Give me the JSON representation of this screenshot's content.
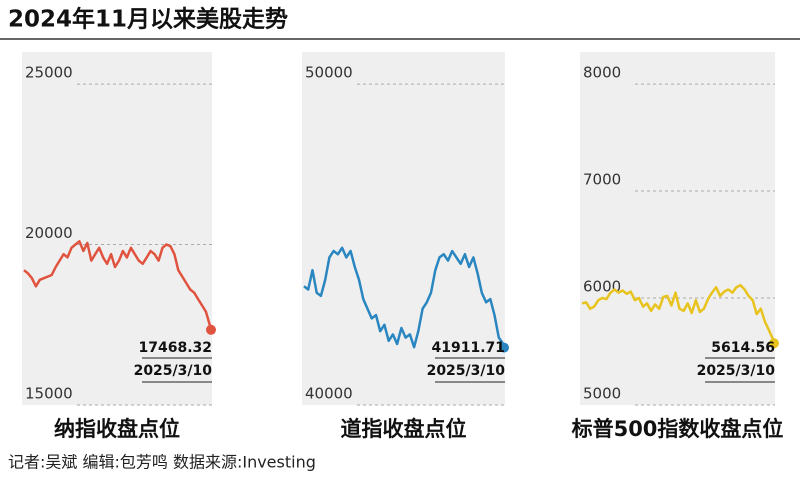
{
  "title": "2024年11月以来美股走势",
  "footer": "记者:吴斌  编辑:包芳鸣  数据来源:Investing",
  "chart_data": [
    {
      "type": "line",
      "title": "纳指收盘点位",
      "color": "#e0533f",
      "ylim": [
        15000,
        26000
      ],
      "yticks": [
        15000,
        20000,
        25000
      ],
      "values": [
        19200,
        19100,
        18950,
        18700,
        18900,
        18950,
        19000,
        19050,
        19300,
        19500,
        19700,
        19600,
        19900,
        20000,
        20100,
        19800,
        20050,
        19500,
        19700,
        19900,
        19600,
        19400,
        19700,
        19300,
        19500,
        19800,
        19600,
        19900,
        19700,
        19500,
        19400,
        19600,
        19800,
        19700,
        19500,
        19900,
        20000,
        19950,
        19700,
        19200,
        19000,
        18800,
        18600,
        18500,
        18300,
        18100,
        17900,
        17468.32
      ],
      "end_value_label": "17468.32",
      "end_date": "2025/3/10"
    },
    {
      "type": "line",
      "title": "道指收盘点位",
      "color": "#2a86c0",
      "ylim": [
        40000,
        51000
      ],
      "yticks": [
        40000,
        50000
      ],
      "values": [
        43700,
        43600,
        44200,
        43500,
        43400,
        43900,
        44600,
        44800,
        44700,
        44900,
        44600,
        44800,
        44300,
        43900,
        43300,
        43000,
        42700,
        42800,
        42300,
        42500,
        42000,
        42200,
        41900,
        42400,
        42100,
        42200,
        41800,
        42300,
        43000,
        43200,
        43500,
        44200,
        44600,
        44700,
        44500,
        44800,
        44600,
        44400,
        44700,
        44300,
        44600,
        44100,
        43500,
        43200,
        43300,
        42800,
        42100,
        41911.71
      ],
      "end_value_label": "41911.71",
      "end_date": "2025/3/10"
    },
    {
      "type": "line",
      "title": "标普500指数收盘点位",
      "color": "#e8c31d",
      "ylim": [
        5000,
        8300
      ],
      "yticks": [
        5000,
        6000,
        7000,
        8000
      ],
      "values": [
        5950,
        5960,
        5900,
        5920,
        5980,
        6000,
        5990,
        6050,
        6080,
        6050,
        6070,
        6040,
        6060,
        5980,
        6000,
        5920,
        5950,
        5880,
        5940,
        5900,
        6010,
        6020,
        5930,
        6050,
        5900,
        5880,
        5950,
        5860,
        5980,
        5870,
        5900,
        5990,
        6050,
        6100,
        6020,
        6060,
        6080,
        6050,
        6100,
        6120,
        6080,
        6020,
        5980,
        5850,
        5900,
        5780,
        5700,
        5614.56
      ],
      "end_value_label": "5614.56",
      "end_date": "2025/3/10"
    }
  ]
}
